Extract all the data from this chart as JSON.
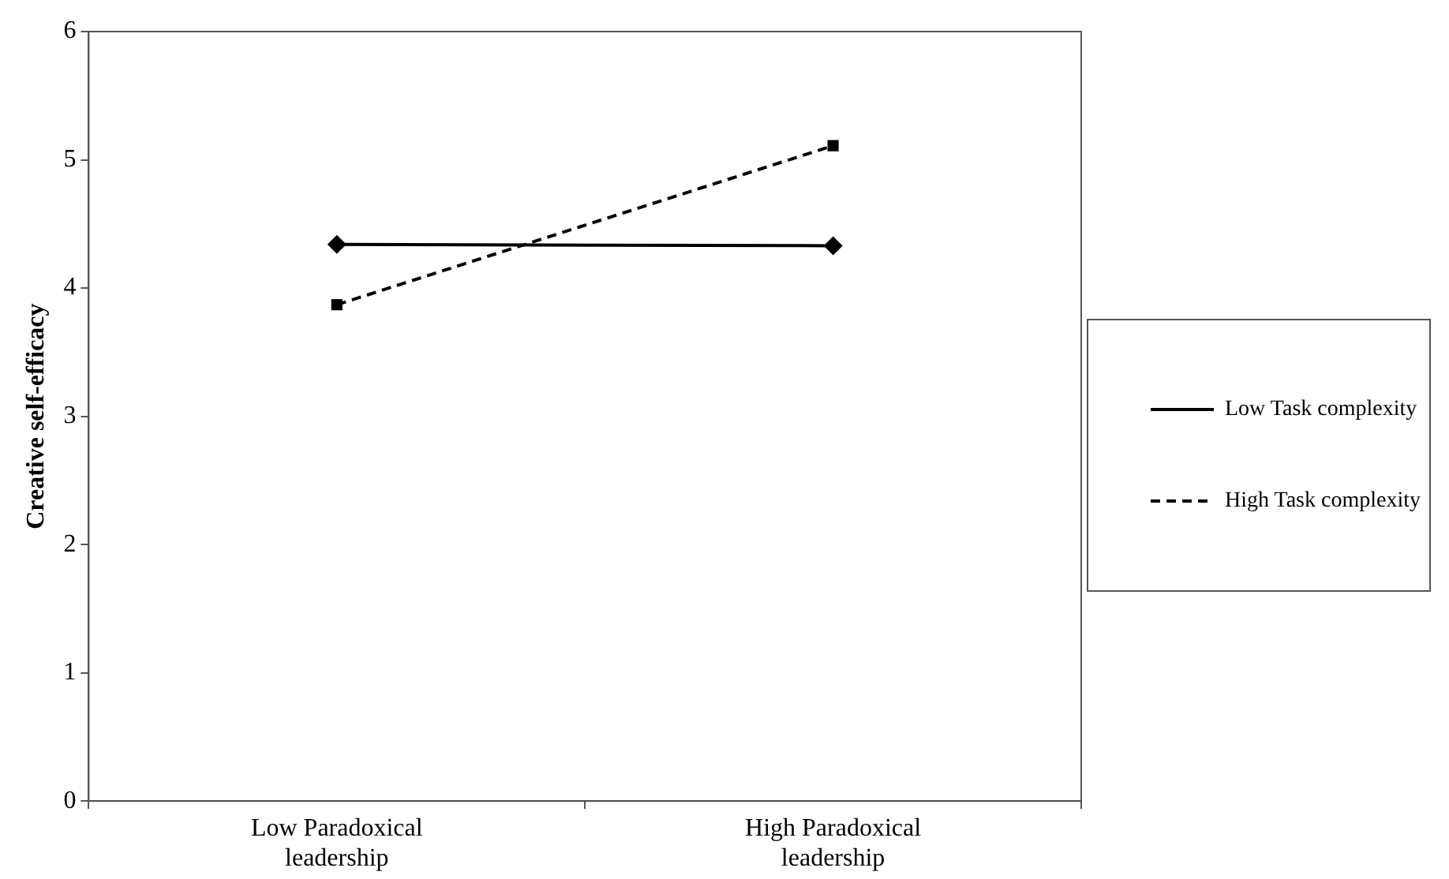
{
  "chart_data": {
    "type": "line",
    "ylabel": "Creative self-efficacy",
    "categories": [
      "Low Paradoxical leadership",
      "High Paradoxical leadership"
    ],
    "series": [
      {
        "name": "Low Task complexity",
        "color": "#000000",
        "values": [
          4.34,
          4.33
        ],
        "marker": "diamond",
        "line_style": "solid"
      },
      {
        "name": "High Task complexity",
        "color": "#000000",
        "values": [
          3.87,
          5.11
        ],
        "marker": "square",
        "line_style": "dashed"
      }
    ],
    "ylim": [
      0,
      6
    ],
    "yticks": [
      0,
      1,
      2,
      3,
      4,
      5,
      6
    ],
    "grid": false,
    "legend": "right"
  }
}
